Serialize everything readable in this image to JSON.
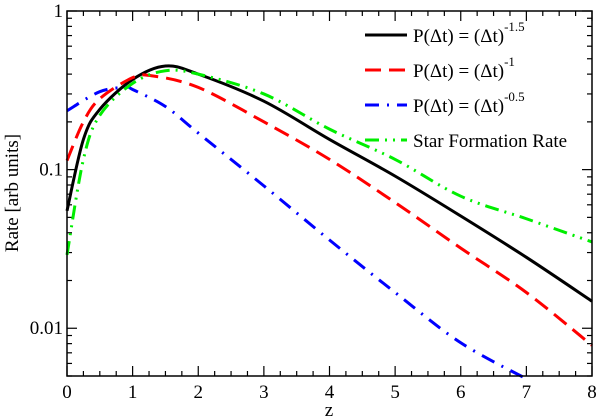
{
  "chart_data": {
    "type": "line",
    "title": "",
    "xlabel": "z",
    "ylabel": "Rate [arb units]",
    "xlim": [
      0,
      8
    ],
    "ylim": [
      0.005,
      1
    ],
    "yscale": "log",
    "grid": false,
    "legend_placement": "top-right",
    "x_ticks": [
      "0",
      "1",
      "2",
      "3",
      "4",
      "5",
      "6",
      "7",
      "8"
    ],
    "y_ticks": [
      {
        "value": 1,
        "label": "1"
      },
      {
        "value": 0.1,
        "label": "0.1"
      },
      {
        "value": 0.01,
        "label": "0.01"
      }
    ],
    "series": [
      {
        "name": "P(Δt) = (Δt)",
        "name_exponent": "-1.5",
        "color": "#000000",
        "style": "solid",
        "x": [
          0,
          0.25,
          0.5,
          1,
          1.5,
          2,
          3,
          4,
          5,
          6,
          7,
          8
        ],
        "y": [
          0.055,
          0.155,
          0.24,
          0.37,
          0.45,
          0.4,
          0.27,
          0.155,
          0.091,
          0.051,
          0.028,
          0.0148
        ]
      },
      {
        "name": "P(Δt) = (Δt)",
        "name_exponent": "-1",
        "color": "#ff0000",
        "style": "dash",
        "x": [
          0,
          0.25,
          0.5,
          1,
          1.3,
          2,
          3,
          4,
          5,
          6,
          7,
          8
        ],
        "y": [
          0.114,
          0.2,
          0.28,
          0.38,
          0.39,
          0.33,
          0.2,
          0.116,
          0.062,
          0.032,
          0.0168,
          0.0078
        ]
      },
      {
        "name": "P(Δt) = (Δt)",
        "name_exponent": "-0.5",
        "color": "#0000ff",
        "style": "dash-dot",
        "x": [
          0,
          0.5,
          0.9,
          1,
          1.5,
          2,
          3,
          4,
          5,
          6,
          7
        ],
        "y": [
          0.235,
          0.31,
          0.33,
          0.32,
          0.25,
          0.17,
          0.079,
          0.036,
          0.0168,
          0.0081,
          0.0048
        ]
      },
      {
        "name": "Star Formation Rate",
        "name_exponent": "",
        "color": "#00ee00",
        "style": "dash-dot-dot",
        "x": [
          0,
          0.25,
          0.5,
          1,
          1.5,
          2,
          3,
          4,
          5,
          6,
          7,
          8
        ],
        "y": [
          0.029,
          0.116,
          0.22,
          0.35,
          0.42,
          0.4,
          0.3,
          0.18,
          0.116,
          0.068,
          0.049,
          0.035
        ]
      }
    ]
  }
}
